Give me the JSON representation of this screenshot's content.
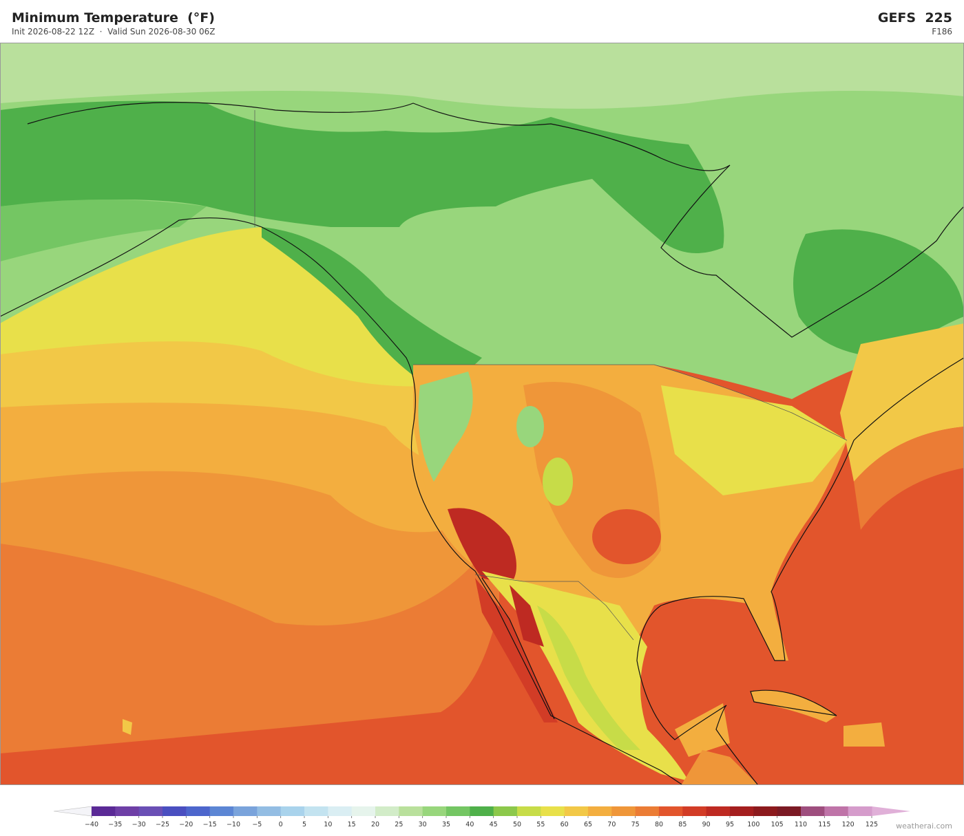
{
  "header": {
    "title": "Minimum Temperature  (°F)",
    "subtitle": "Init 2026-08-22 12Z  ·  Valid Sun 2026-08-30 06Z",
    "model": "GEFS  225",
    "forecast_hour": "F186"
  },
  "colorbar": {
    "ticks": [
      {
        "value": -40,
        "label": "−40"
      },
      {
        "value": -35,
        "label": "−35"
      },
      {
        "value": -30,
        "label": "−30"
      },
      {
        "value": -25,
        "label": "−25"
      },
      {
        "value": -20,
        "label": "−20"
      },
      {
        "value": -15,
        "label": "−15"
      },
      {
        "value": -10,
        "label": "−10"
      },
      {
        "value": -5,
        "label": "−5"
      },
      0,
      5,
      10,
      15,
      20,
      25,
      30,
      35,
      40,
      45,
      50,
      55,
      60,
      65,
      70,
      75,
      80,
      85,
      90,
      95,
      100,
      105,
      110,
      115,
      120,
      125
    ],
    "colors": [
      "#5b2a96",
      "#6e3fa6",
      "#6a4fb5",
      "#4a4fc0",
      "#4d66cc",
      "#5c86d4",
      "#7aa3db",
      "#93bde3",
      "#a9d3ec",
      "#c3e3f0",
      "#daeef3",
      "#e6f4ec",
      "#d2ecc8",
      "#b9e09c",
      "#98d67c",
      "#74c663",
      "#4fb04a",
      "#8cc84b",
      "#c7dc48",
      "#e8e04a",
      "#f2c847",
      "#f3ae3f",
      "#ef9639",
      "#eb7c35",
      "#e2552c",
      "#d23c26",
      "#be2a22",
      "#a41e1e",
      "#8c1a1d",
      "#7b1a24",
      "#9e4e7e",
      "#bf74a8",
      "#d59ccb"
    ],
    "under_color": "#f4f4f8",
    "over_color": "#e0b0d8"
  },
  "credit": "weatherai.com"
}
